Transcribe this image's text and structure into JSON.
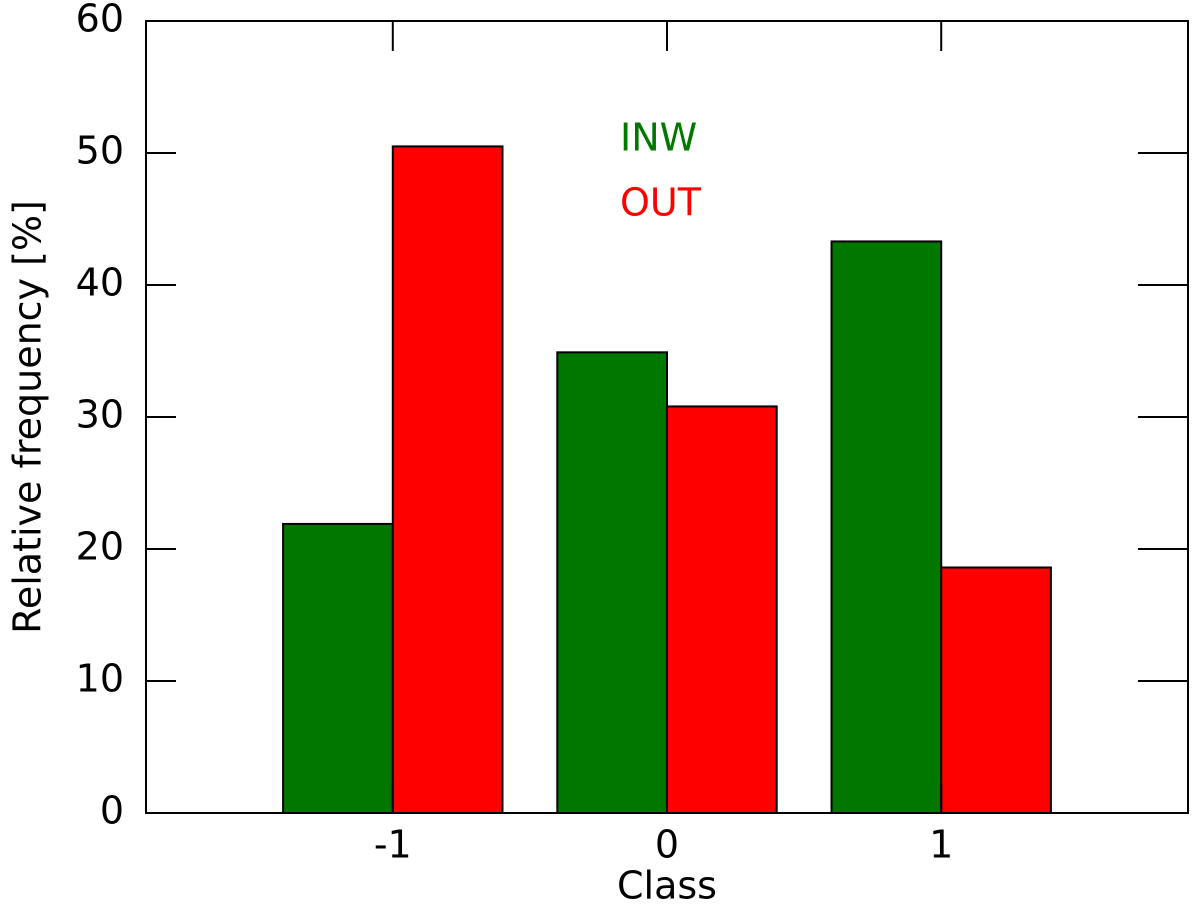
{
  "chart_data": {
    "type": "bar",
    "x": [
      -1,
      0,
      1
    ],
    "xlim": [
      -1.9,
      1.9
    ],
    "xticks": [
      -1,
      0,
      1
    ],
    "ylim": [
      0,
      60
    ],
    "yticks": [
      0,
      10,
      20,
      30,
      40,
      50,
      60
    ],
    "xlabel": "Class",
    "ylabel": "Relative frequency [%]",
    "bar_width": 0.4,
    "series": [
      {
        "name": "INW",
        "color": "#007800",
        "values": [
          21.9,
          34.9,
          43.3
        ]
      },
      {
        "name": "OUT",
        "color": "#ff0000",
        "values": [
          50.5,
          30.8,
          18.6
        ]
      }
    ]
  }
}
